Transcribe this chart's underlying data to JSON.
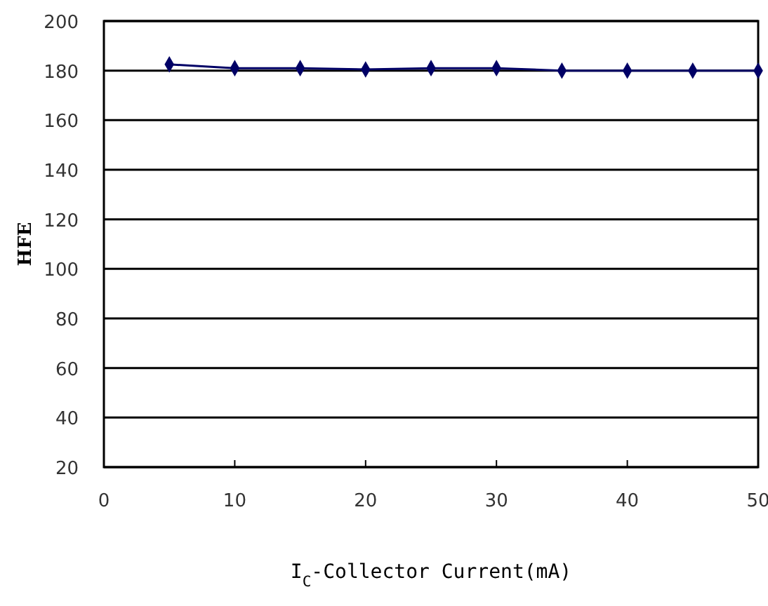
{
  "chart_data": {
    "type": "line",
    "xlabel": "I$_{C}$-Collector Current(mA)",
    "ylabel": "HFE",
    "x": [
      5,
      10,
      15,
      20,
      25,
      30,
      35,
      40,
      45,
      50
    ],
    "series": [
      {
        "color": "#000066",
        "values": [
          182.5,
          181,
          181,
          180.5,
          181,
          181,
          180,
          180,
          180,
          180
        ]
      }
    ],
    "xlim": [
      0,
      50
    ],
    "xticks": [
      0,
      10,
      20,
      30,
      40,
      50
    ],
    "ylim": [
      20,
      200
    ],
    "yticks": [
      20,
      40,
      60,
      80,
      100,
      120,
      140,
      160,
      180,
      200
    ],
    "grid": "y",
    "marker": "diamond",
    "line_style": "solid"
  }
}
